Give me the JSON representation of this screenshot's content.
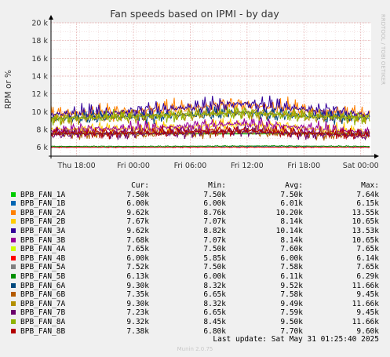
{
  "chart_data": {
    "type": "line",
    "title": "Fan speeds based on IPMI - by day",
    "ylabel": "RPM or %",
    "side_label": "RRDTOOL / TOBI OETIKER",
    "ylim": [
      5000,
      20000
    ],
    "yticks": [
      {
        "v": 6000,
        "label": "6 k"
      },
      {
        "v": 8000,
        "label": "8 k"
      },
      {
        "v": 10000,
        "label": "10 k"
      },
      {
        "v": 12000,
        "label": "12 k"
      },
      {
        "v": 14000,
        "label": "14 k"
      },
      {
        "v": 16000,
        "label": "16 k"
      },
      {
        "v": 18000,
        "label": "18 k"
      },
      {
        "v": 20000,
        "label": "20 k"
      }
    ],
    "xrange_hours": [
      0,
      33.8
    ],
    "xticks": [
      {
        "h": 2.7,
        "label": "Thu 18:00"
      },
      {
        "h": 8.7,
        "label": "Fri 00:00"
      },
      {
        "h": 14.7,
        "label": "Fri 06:00"
      },
      {
        "h": 20.7,
        "label": "Fri 12:00"
      },
      {
        "h": 26.7,
        "label": "Fri 18:00"
      },
      {
        "h": 32.7,
        "label": "Sat 00:00"
      }
    ],
    "grid": true,
    "series": [
      {
        "name": "BPB_FAN_1A",
        "color": "#00cc00",
        "cur": "7.50k",
        "min": "7.50k",
        "avg": "7.50k",
        "max": "7.64k",
        "values": [
          7500,
          7500,
          7500,
          7500
        ]
      },
      {
        "name": "BPB_FAN_1B",
        "color": "#0066b3",
        "cur": "6.00k",
        "min": "6.00k",
        "avg": "6.01k",
        "max": "6.15k",
        "values": [
          6000,
          6000,
          6050,
          6000
        ]
      },
      {
        "name": "BPB_FAN_2A",
        "color": "#ff8000",
        "cur": "9.62k",
        "min": "8.76k",
        "avg": "10.20k",
        "max": "13.55k",
        "values": [
          9800,
          9900,
          10400,
          10800,
          10200,
          9600
        ]
      },
      {
        "name": "BPB_FAN_2B",
        "color": "#ffcc00",
        "cur": "7.67k",
        "min": "7.07k",
        "avg": "8.14k",
        "max": "10.65k",
        "values": [
          8000,
          8100,
          8200,
          8600,
          8100,
          7700
        ]
      },
      {
        "name": "BPB_FAN_3A",
        "color": "#330099",
        "cur": "9.62k",
        "min": "8.82k",
        "avg": "10.14k",
        "max": "13.53k",
        "values": [
          9700,
          9900,
          10400,
          10900,
          10300,
          9600
        ]
      },
      {
        "name": "BPB_FAN_3B",
        "color": "#990099",
        "cur": "7.68k",
        "min": "7.07k",
        "avg": "8.14k",
        "max": "10.65k",
        "values": [
          7900,
          8100,
          8300,
          8700,
          8200,
          7700
        ]
      },
      {
        "name": "BPB_FAN_4A",
        "color": "#ccff00",
        "cur": "7.65k",
        "min": "7.50k",
        "avg": "7.60k",
        "max": "7.65k",
        "values": [
          7600,
          7600,
          7600,
          7600
        ]
      },
      {
        "name": "BPB_FAN_4B",
        "color": "#ff0000",
        "cur": "6.00k",
        "min": "5.85k",
        "avg": "6.00k",
        "max": "6.14k",
        "values": [
          6000,
          6000,
          6000,
          6000
        ]
      },
      {
        "name": "BPB_FAN_5A",
        "color": "#808080",
        "cur": "7.52k",
        "min": "7.50k",
        "avg": "7.58k",
        "max": "7.65k",
        "values": [
          7550,
          7550,
          7600,
          7550
        ]
      },
      {
        "name": "BPB_FAN_5B",
        "color": "#008f00",
        "cur": "6.13k",
        "min": "6.00k",
        "avg": "6.11k",
        "max": "6.29k",
        "values": [
          6100,
          6100,
          6150,
          6100
        ]
      },
      {
        "name": "BPB_FAN_6A",
        "color": "#00487d",
        "cur": "9.30k",
        "min": "8.32k",
        "avg": "9.52k",
        "max": "11.66k",
        "values": [
          9200,
          9400,
          9600,
          9900,
          9500,
          9300
        ]
      },
      {
        "name": "BPB_FAN_6B",
        "color": "#b35a00",
        "cur": "7.35k",
        "min": "6.65k",
        "avg": "7.58k",
        "max": "9.45k",
        "values": [
          7500,
          7500,
          7600,
          7800,
          7500,
          7300
        ]
      },
      {
        "name": "BPB_FAN_7A",
        "color": "#b38f00",
        "cur": "9.30k",
        "min": "8.32k",
        "avg": "9.49k",
        "max": "11.66k",
        "values": [
          9200,
          9400,
          9600,
          9900,
          9500,
          9300
        ]
      },
      {
        "name": "BPB_FAN_7B",
        "color": "#6b006b",
        "cur": "7.23k",
        "min": "6.65k",
        "avg": "7.59k",
        "max": "9.45k",
        "values": [
          7500,
          7500,
          7600,
          7800,
          7500,
          7300
        ]
      },
      {
        "name": "BPB_FAN_8A",
        "color": "#8fb300",
        "cur": "9.32k",
        "min": "8.45k",
        "avg": "9.50k",
        "max": "11.66k",
        "values": [
          9200,
          9400,
          9600,
          9900,
          9500,
          9300
        ]
      },
      {
        "name": "BPB_FAN_8B",
        "color": "#b30000",
        "cur": "7.38k",
        "min": "6.80k",
        "avg": "7.70k",
        "max": "9.60k",
        "values": [
          7600,
          7600,
          7700,
          7900,
          7600,
          7400
        ]
      }
    ]
  },
  "legend_headers": {
    "cur": "Cur:",
    "min": "Min:",
    "avg": "Avg:",
    "max": "Max:"
  },
  "footer": {
    "last_update": "Last update: Sat May 31 01:25:40 2025",
    "credit": "Munin 2.0.75"
  }
}
